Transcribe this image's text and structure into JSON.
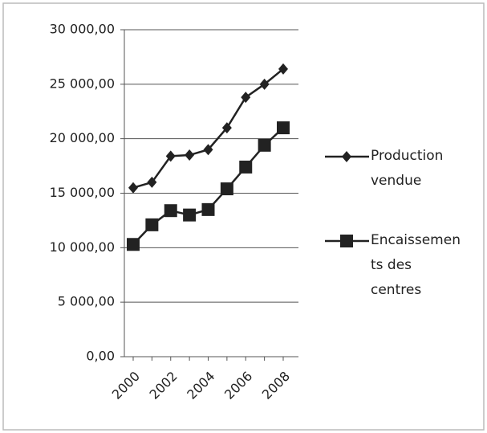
{
  "chart_data": {
    "type": "line",
    "categories": [
      "2000",
      null,
      "2002",
      null,
      "2004",
      null,
      "2006",
      null,
      "2008"
    ],
    "series": [
      {
        "name": "Production vendue",
        "color": "#222222",
        "marker": "diamond",
        "values": [
          15500,
          16000,
          18400,
          18500,
          19000,
          21000,
          23800,
          25000,
          26400
        ]
      },
      {
        "name": "Encaissements des centres",
        "color": "#222222",
        "marker": "square",
        "values": [
          10300,
          12100,
          13400,
          13000,
          13500,
          15400,
          17400,
          19400,
          21000
        ]
      }
    ],
    "ylim": [
      0,
      30000
    ],
    "yticks": [
      {
        "value": 0,
        "label": "0,00"
      },
      {
        "value": 5000,
        "label": "5 000,00"
      },
      {
        "value": 10000,
        "label": "10 000,00"
      },
      {
        "value": 15000,
        "label": "15 000,00"
      },
      {
        "value": 20000,
        "label": "20 000,00"
      },
      {
        "value": 25000,
        "label": "25 000,00"
      },
      {
        "value": 30000,
        "label": "30 000,00"
      }
    ],
    "grid": true,
    "legend": "right"
  }
}
